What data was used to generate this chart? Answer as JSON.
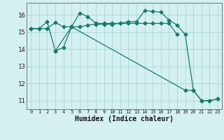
{
  "bg_color": "#d4f0f0",
  "grid_color": "#add8d8",
  "line_color": "#1a7a6e",
  "xlabel": "Humidex (Indice chaleur)",
  "xlim": [
    -0.5,
    23.5
  ],
  "ylim": [
    10.5,
    16.7
  ],
  "yticks": [
    11,
    12,
    13,
    14,
    15,
    16
  ],
  "xticks": [
    0,
    1,
    2,
    3,
    4,
    5,
    6,
    7,
    8,
    9,
    10,
    11,
    12,
    13,
    14,
    15,
    16,
    17,
    18,
    19,
    20,
    21,
    22,
    23
  ],
  "series1_x": [
    0,
    1,
    2,
    3,
    4,
    5,
    6,
    7,
    8,
    9,
    10,
    11,
    12,
    13,
    14,
    15,
    16,
    17,
    18
  ],
  "series1_y": [
    15.2,
    15.2,
    15.2,
    15.55,
    15.3,
    15.3,
    15.3,
    15.4,
    15.45,
    15.45,
    15.45,
    15.5,
    15.5,
    15.5,
    15.5,
    15.5,
    15.5,
    15.5,
    14.85
  ],
  "series2_x": [
    0,
    1,
    2,
    3,
    4,
    5,
    6,
    7,
    8,
    9,
    10,
    11,
    12,
    13,
    14,
    15,
    16,
    17,
    18,
    19,
    20,
    21,
    22,
    23
  ],
  "series2_y": [
    15.2,
    15.2,
    15.6,
    13.9,
    14.1,
    15.3,
    16.1,
    15.9,
    15.5,
    15.5,
    15.5,
    15.5,
    15.6,
    15.6,
    16.25,
    16.2,
    16.15,
    15.7,
    15.4,
    14.85,
    11.6,
    11.0,
    11.0,
    11.1
  ],
  "series3_x": [
    3,
    5,
    19,
    20,
    21,
    22,
    23
  ],
  "series3_y": [
    13.9,
    15.3,
    11.6,
    11.6,
    11.0,
    11.0,
    11.1
  ]
}
